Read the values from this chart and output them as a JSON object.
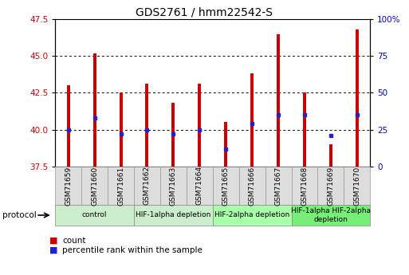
{
  "title": "GDS2761 / hmm22542-S",
  "samples": [
    "GSM71659",
    "GSM71660",
    "GSM71661",
    "GSM71662",
    "GSM71663",
    "GSM71664",
    "GSM71665",
    "GSM71666",
    "GSM71667",
    "GSM71668",
    "GSM71669",
    "GSM71670"
  ],
  "bar_top": [
    43.0,
    45.2,
    42.5,
    43.1,
    41.8,
    43.1,
    40.5,
    43.8,
    46.5,
    42.5,
    39.0,
    46.8
  ],
  "bar_bottom": [
    37.5,
    37.5,
    37.5,
    37.5,
    37.5,
    37.5,
    37.5,
    37.5,
    37.5,
    37.5,
    37.5,
    37.5
  ],
  "blue_y": [
    40.0,
    40.8,
    39.7,
    40.0,
    39.7,
    40.0,
    38.7,
    40.4,
    41.0,
    41.0,
    39.6,
    41.0
  ],
  "ylim": [
    37.5,
    47.5
  ],
  "ylim_range": 10.0,
  "ylim_min": 37.5,
  "yticks_left": [
    37.5,
    40.0,
    42.5,
    45.0,
    47.5
  ],
  "yticks_right": [
    0,
    25,
    50,
    75,
    100
  ],
  "groups": [
    {
      "label": "control",
      "start": 0,
      "end": 3,
      "color": "#cceecc"
    },
    {
      "label": "HIF-1alpha depletion",
      "start": 3,
      "end": 6,
      "color": "#cceecc"
    },
    {
      "label": "HIF-2alpha depletion",
      "start": 6,
      "end": 9,
      "color": "#aaffaa"
    },
    {
      "label": "HIF-1alpha HIF-2alpha\ndepletion",
      "start": 9,
      "end": 12,
      "color": "#77ee77"
    }
  ],
  "bar_color": "#cc0000",
  "dot_color": "#2222cc",
  "fig_bg": "#ffffff",
  "plot_bg": "#ffffff",
  "left_tick_color": "#cc0000",
  "right_tick_color": "#0000bb",
  "bar_width": 0.12,
  "dot_size": 3.5,
  "title_fontsize": 10,
  "tick_fontsize": 7.5,
  "sample_fontsize": 6.5,
  "group_fontsize": 6.5,
  "legend_fontsize": 7.5
}
